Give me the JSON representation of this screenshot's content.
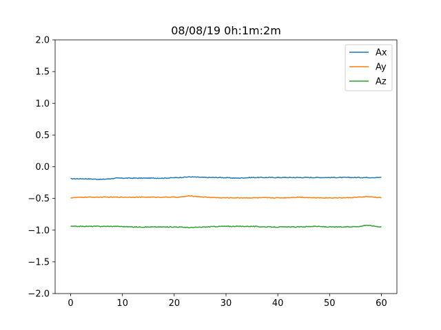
{
  "chart_data": {
    "type": "line",
    "title": "08/08/19 0h:1m:2m",
    "xlabel": "",
    "ylabel": "",
    "xlim": [
      -3,
      63
    ],
    "ylim": [
      -2.0,
      2.0
    ],
    "xticks": [
      0,
      10,
      20,
      30,
      40,
      50,
      60
    ],
    "xtick_labels": [
      "0",
      "10",
      "20",
      "30",
      "40",
      "50",
      "60"
    ],
    "yticks": [
      -2.0,
      -1.5,
      -1.0,
      -0.5,
      0.0,
      0.5,
      1.0,
      1.5,
      2.0
    ],
    "ytick_labels": [
      "−2.0",
      "−1.5",
      "−1.0",
      "−0.5",
      "0.0",
      "0.5",
      "1.0",
      "1.5",
      "2.0"
    ],
    "grid": false,
    "legend_position": "top-right",
    "x": [
      0,
      3,
      6,
      9,
      12,
      15,
      18,
      21,
      23,
      26,
      29,
      32,
      35,
      38,
      41,
      44,
      47,
      50,
      53,
      56,
      57,
      60
    ],
    "series": [
      {
        "name": "Ax",
        "color": "#1f77b4",
        "values": [
          -0.19,
          -0.19,
          -0.2,
          -0.18,
          -0.18,
          -0.18,
          -0.18,
          -0.17,
          -0.16,
          -0.17,
          -0.17,
          -0.18,
          -0.17,
          -0.17,
          -0.17,
          -0.17,
          -0.17,
          -0.17,
          -0.17,
          -0.17,
          -0.17,
          -0.17
        ]
      },
      {
        "name": "Ay",
        "color": "#ff7f0e",
        "values": [
          -0.49,
          -0.48,
          -0.48,
          -0.48,
          -0.48,
          -0.48,
          -0.48,
          -0.48,
          -0.46,
          -0.48,
          -0.49,
          -0.49,
          -0.49,
          -0.49,
          -0.49,
          -0.48,
          -0.49,
          -0.49,
          -0.49,
          -0.48,
          -0.47,
          -0.49
        ]
      },
      {
        "name": "Az",
        "color": "#2ca02c",
        "values": [
          -0.94,
          -0.94,
          -0.94,
          -0.94,
          -0.95,
          -0.95,
          -0.95,
          -0.95,
          -0.96,
          -0.95,
          -0.94,
          -0.94,
          -0.94,
          -0.95,
          -0.95,
          -0.95,
          -0.94,
          -0.95,
          -0.95,
          -0.94,
          -0.92,
          -0.95
        ]
      }
    ]
  }
}
